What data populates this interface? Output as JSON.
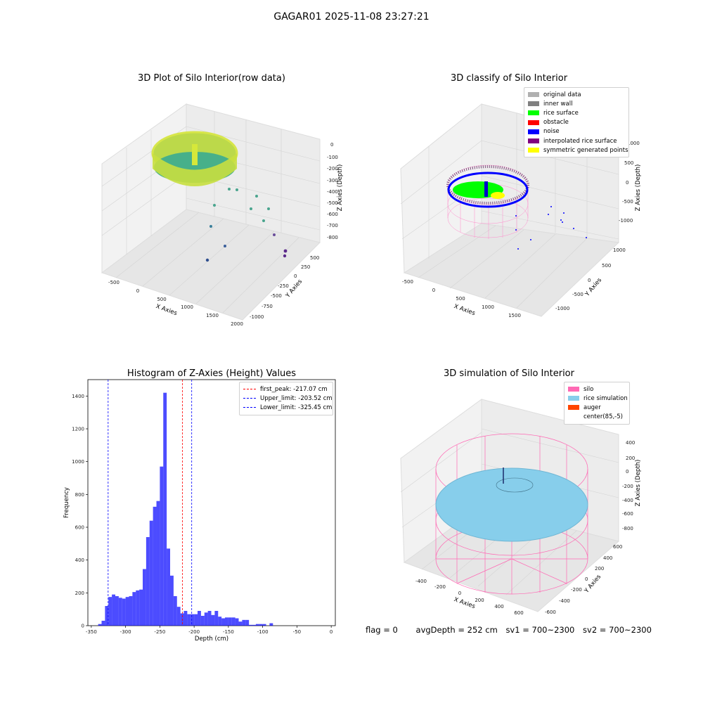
{
  "suptitle": "GAGAR01 2025-11-08 23:27:21",
  "panel1": {
    "title": "3D Plot of Silo Interior(row data)",
    "x_label": "X Axies",
    "y_label": "Y Axies",
    "z_label": "Z Axies (Depth)",
    "x_ticks": [
      "-500",
      "0",
      "500",
      "1000",
      "1500",
      "2000"
    ],
    "y_ticks": [
      "500",
      "250",
      "0",
      "-250",
      "-500",
      "-750",
      "-1000"
    ],
    "z_ticks": [
      "0",
      "-100",
      "-200",
      "-300",
      "-400",
      "-500",
      "-600",
      "-700",
      "-800"
    ]
  },
  "panel2": {
    "title": "3D classify of Silo Interior",
    "x_label": "X Axies",
    "y_label": "Y Axies",
    "z_label": "Z Axies (Depth)",
    "x_ticks": [
      "-500",
      "0",
      "500",
      "1000",
      "1500"
    ],
    "y_ticks": [
      "1000",
      "500",
      "0",
      "-500",
      "-1000"
    ],
    "z_ticks": [
      "1000",
      "500",
      "0",
      "-500",
      "-1000"
    ],
    "legend": [
      {
        "label": "original data",
        "color": "#b0b0b0"
      },
      {
        "label": "inner wall",
        "color": "#808080"
      },
      {
        "label": "rice surface",
        "color": "#00ff00"
      },
      {
        "label": "obstacle",
        "color": "#ff0000"
      },
      {
        "label": "noise",
        "color": "#0000ff"
      },
      {
        "label": "interpolated rice surface",
        "color": "#800080"
      },
      {
        "label": "symmetric generated points",
        "color": "#ffff00"
      }
    ]
  },
  "panel3": {
    "title": "Histogram of Z-Axies (Height) Values",
    "legend": [
      {
        "label": "first_peak: -217.07 cm",
        "color": "#ff0000"
      },
      {
        "label": "Upper_limit: -203.52 cm",
        "color": "#0000ff"
      },
      {
        "label": "Lower_limit: -325.45 cm",
        "color": "#0000ff"
      }
    ]
  },
  "panel4": {
    "title": "3D simulation of Silo Interior",
    "x_label": "X Axies",
    "y_label": "Y Axies",
    "z_label": "Z Axies (Depth)",
    "x_ticks": [
      "-400",
      "-200",
      "0",
      "200",
      "400",
      "600"
    ],
    "y_ticks": [
      "600",
      "400",
      "200",
      "0",
      "-200",
      "-400",
      "-600"
    ],
    "z_ticks": [
      "400",
      "200",
      "0",
      "-200",
      "-400",
      "-600",
      "-800"
    ],
    "legend": [
      {
        "label": "silo",
        "color": "#ff69b4"
      },
      {
        "label": "rice simulation",
        "color": "#87ceeb"
      },
      {
        "label": "auger",
        "color": "#ff4500"
      },
      {
        "label": "center(85,-5)",
        "color": "#ffffff"
      }
    ]
  },
  "footer": {
    "flag": "flag = 0",
    "avg": "avgDepth = 252 cm",
    "sv1": "sv1 = 700~2300",
    "sv2": "sv2 = 700~2300"
  },
  "chart_data": {
    "type": "bar",
    "title": "Histogram of Z-Axies (Height) Values",
    "xlabel": "Depth (cm)",
    "ylabel": "Frequency",
    "xlim": [
      -355,
      6
    ],
    "ylim": [
      0,
      1500
    ],
    "x_ticks": [
      -350,
      -300,
      -250,
      -200,
      -150,
      -100,
      -50,
      0
    ],
    "y_ticks": [
      0,
      200,
      400,
      600,
      800,
      1000,
      1200,
      1400
    ],
    "bar_color": "#0000ff",
    "bin_width": 5,
    "bins_start": [
      -345,
      -340,
      -335,
      -330,
      -325,
      -320,
      -315,
      -310,
      -305,
      -300,
      -295,
      -290,
      -285,
      -280,
      -275,
      -270,
      -265,
      -260,
      -255,
      -250,
      -245,
      -240,
      -235,
      -230,
      -225,
      -220,
      -215,
      -210,
      -205,
      -200,
      -195,
      -190,
      -185,
      -180,
      -175,
      -170,
      -165,
      -160,
      -155,
      -150,
      -145,
      -140,
      -135,
      -130,
      -125,
      -120,
      -115,
      -110,
      -105,
      -100,
      -95,
      -90,
      -85,
      -80,
      -75,
      -70,
      -65,
      -60,
      -55,
      -50,
      -45,
      -40,
      -35,
      -30,
      -25,
      -20,
      -15,
      -10,
      -5,
      0
    ],
    "values": [
      0,
      10,
      30,
      120,
      175,
      190,
      180,
      170,
      165,
      175,
      180,
      205,
      215,
      220,
      345,
      540,
      640,
      725,
      760,
      970,
      1420,
      470,
      305,
      180,
      115,
      75,
      90,
      70,
      70,
      70,
      90,
      60,
      80,
      90,
      65,
      90,
      55,
      45,
      50,
      50,
      50,
      45,
      25,
      35,
      35,
      5,
      5,
      10,
      10,
      10,
      0,
      15,
      0,
      0,
      0,
      0,
      0,
      0,
      0,
      0,
      0,
      0,
      0,
      0,
      0,
      0,
      0,
      0,
      0,
      0
    ],
    "vlines": [
      {
        "name": "first_peak",
        "x": -217.07,
        "color": "#ff0000"
      },
      {
        "name": "Upper_limit",
        "x": -203.52,
        "color": "#0000ff"
      },
      {
        "name": "Lower_limit",
        "x": -325.45,
        "color": "#0000ff"
      }
    ]
  }
}
